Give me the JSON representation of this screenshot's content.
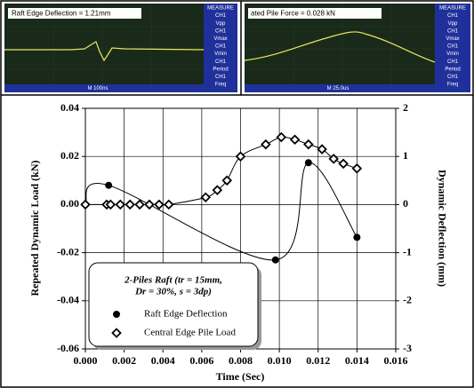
{
  "scopes": [
    {
      "title": "Raft Edge Deflection = 1.21mm",
      "side": [
        "MEASURE",
        "CH1",
        "Vpp",
        "CH1",
        "Vmax",
        "CH1",
        "Vmin",
        "CH1",
        "Period",
        "CH1",
        "Freq"
      ],
      "bottom": "M 100ns"
    },
    {
      "title": "ated Pile Force = 0.028 kN",
      "side": [
        "MEASURE",
        "CH1",
        "Vpp",
        "CH1",
        "Vmax",
        "CH1",
        "Vmin",
        "CH1",
        "Period",
        "CH1",
        "Freq"
      ],
      "bottom": "M 25.0us"
    }
  ],
  "chart_data": {
    "type": "line",
    "xlabel": "Time (Sec)",
    "ylabel": "Repeated Dynamic Load (kN)",
    "y2label": "Dynamic Deflection (mm)",
    "legend_title": [
      "2-Piles Raft (tr = 15mm,",
      "Dr = 30%, s = 3dp)"
    ],
    "xlim": [
      0,
      0.016
    ],
    "xticks": [
      {
        "value": 0,
        "label": "0.000"
      },
      0.002,
      0.004,
      0.006,
      0.008,
      {
        "value": 0.01,
        "label": "0.010"
      },
      0.012,
      0.014,
      0.016
    ],
    "ylim": [
      -0.06,
      0.04
    ],
    "yticks": [
      -0.06,
      -0.04,
      -0.02,
      {
        "value": 0,
        "label": "0.00"
      },
      0.02,
      0.04
    ],
    "y2lim": [
      -3,
      2
    ],
    "y2ticks": [
      -3,
      -2,
      -1,
      0,
      1,
      2
    ],
    "grid": true,
    "series": [
      {
        "name": "Raft Edge Deflection",
        "color": "#000000",
        "marker": "circle",
        "axis": "y2",
        "x": [
          0,
          0.0012,
          0.0098,
          0.0115,
          0.014
        ],
        "values": [
          0,
          0.4,
          -1.15,
          0.87,
          -0.68
        ]
      },
      {
        "name": "Central Edge Pile Load",
        "color": "#000000",
        "marker": "diamond",
        "x": [
          0,
          0.0011,
          0.0013,
          0.0018,
          0.0023,
          0.0028,
          0.0033,
          0.0038,
          0.0043,
          0.0062,
          0.0068,
          0.0073,
          0.008,
          0.0093,
          0.0101,
          0.0108,
          0.0115,
          0.0122,
          0.0128,
          0.0133,
          0.014
        ],
        "values": [
          0,
          0,
          0,
          0,
          0,
          0,
          0,
          0,
          0,
          0.003,
          0.006,
          0.01,
          0.02,
          0.025,
          0.028,
          0.027,
          0.025,
          0.023,
          0.019,
          0.017,
          0.015
        ]
      }
    ]
  }
}
